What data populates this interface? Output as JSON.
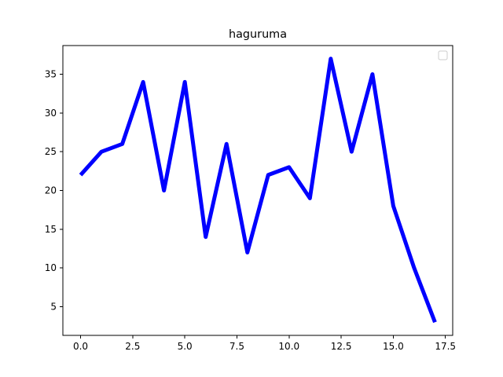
{
  "chart_data": {
    "type": "line",
    "title": "haguruma",
    "xlabel": "",
    "ylabel": "",
    "xlim": [
      -0.85,
      17.85
    ],
    "ylim": [
      1.3,
      38.7
    ],
    "x_ticks": [
      0.0,
      2.5,
      5.0,
      7.5,
      10.0,
      12.5,
      15.0,
      17.5
    ],
    "x_tick_labels": [
      "0.0",
      "2.5",
      "5.0",
      "7.5",
      "10.0",
      "12.5",
      "15.0",
      "17.5"
    ],
    "y_ticks": [
      5,
      10,
      15,
      20,
      25,
      30,
      35
    ],
    "y_tick_labels": [
      "5",
      "10",
      "15",
      "20",
      "25",
      "30",
      "35"
    ],
    "grid": false,
    "legend": {
      "placement": "top-right",
      "entries": []
    },
    "series": [
      {
        "color": "#0000ff",
        "x": [
          0,
          1,
          2,
          3,
          4,
          5,
          6,
          7,
          8,
          9,
          10,
          11,
          12,
          13,
          14,
          15,
          16,
          17
        ],
        "y": [
          22,
          25,
          26,
          34,
          20,
          34,
          14,
          26,
          12,
          22,
          23,
          19,
          37,
          25,
          35,
          18,
          10,
          3
        ]
      }
    ]
  }
}
